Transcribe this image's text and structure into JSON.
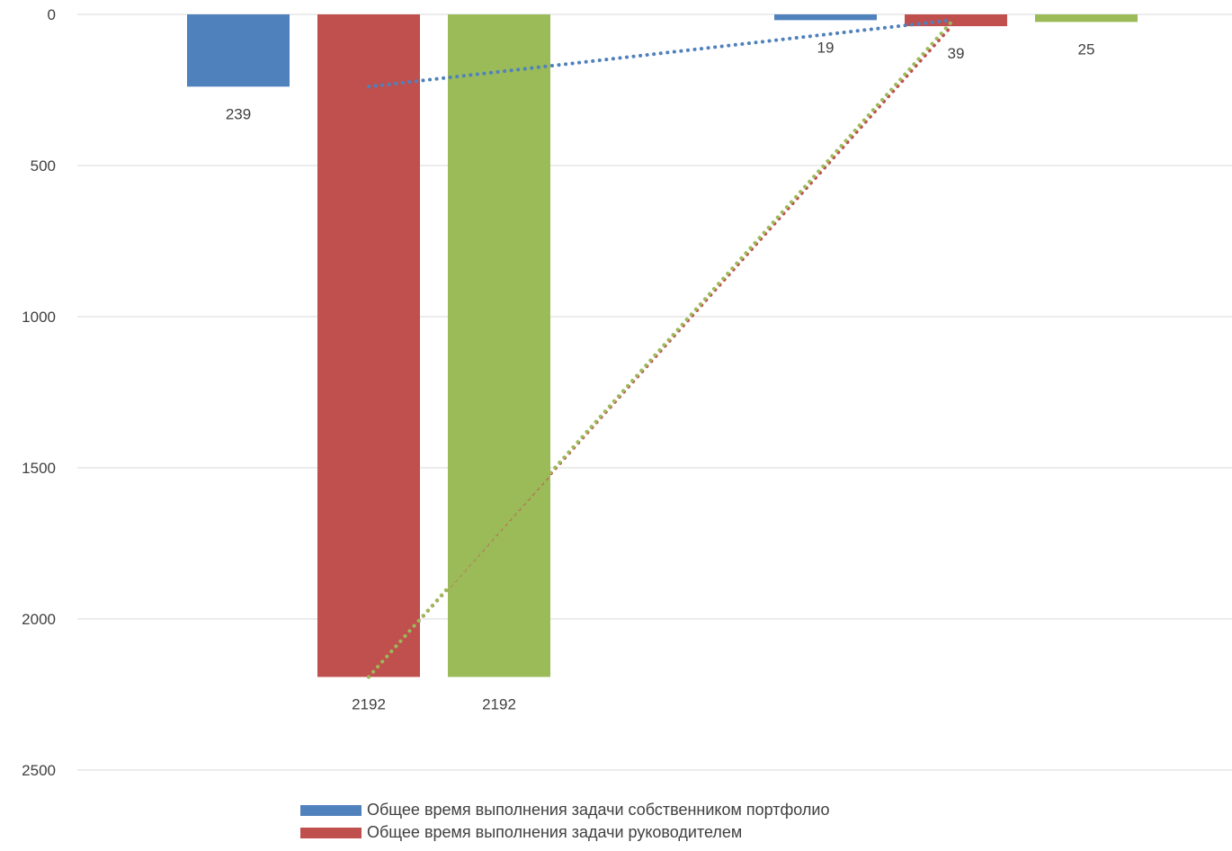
{
  "chart_data": {
    "type": "bar",
    "orientation": "vertical",
    "y_axis_reversed": true,
    "ylim": [
      0,
      2500
    ],
    "y_ticks": [
      "0",
      "500",
      "1000",
      "1500",
      "2000",
      "2500"
    ],
    "y_tick_values": [
      0,
      500,
      1000,
      1500,
      2000,
      2500
    ],
    "grid": true,
    "legend_placement": "bottom",
    "groups": 2,
    "series": [
      {
        "name": "Общее время выполнения задачи собственником портфолио",
        "color": "#4f81bd",
        "values": [
          239,
          19
        ],
        "labels": [
          "239",
          "19"
        ]
      },
      {
        "name": "Общее время выполнения задачи руководителем",
        "color": "#c0504d",
        "values": [
          2192,
          39
        ],
        "labels": [
          "2192",
          "39"
        ]
      },
      {
        "name": "",
        "color": "#9bbb59",
        "values": [
          2192,
          25
        ],
        "labels": [
          "2192",
          "25"
        ]
      }
    ],
    "trendlines": [
      {
        "series": 0,
        "style": "dotted",
        "color": "#4f81bd"
      },
      {
        "series": 1,
        "style": "dotted",
        "color": "#c0504d"
      },
      {
        "series": 2,
        "style": "dotted",
        "color": "#9bbb59"
      }
    ]
  },
  "legend": {
    "items": [
      {
        "label": "Общее время выполнения задачи собственником портфолио",
        "color": "#4f81bd"
      },
      {
        "label": "Общее время выполнения задачи руководителем",
        "color": "#c0504d"
      }
    ]
  }
}
